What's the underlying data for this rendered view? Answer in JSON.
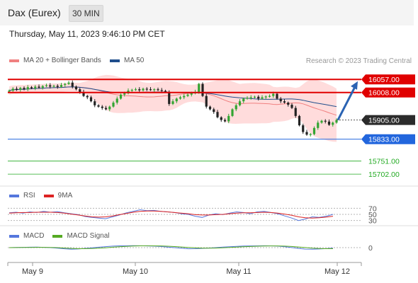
{
  "header": {
    "title": "Dax (Eurex)",
    "interval": "30 MIN"
  },
  "timestamp": "Thursday, May 11, 2023 9:46:10 PM CET",
  "legend": {
    "ma20": "MA 20 + Bollinger Bands",
    "ma50": "MA 50",
    "rsi": "RSI",
    "rsi_ma": "9MA",
    "macd": "MACD",
    "macd_signal": "MACD Signal"
  },
  "credit": "Research © 2023 Trading Central",
  "colors": {
    "resistance": "#e00000",
    "support": "#2266dd",
    "target": "#22aa22",
    "arrow": "#2a63b3",
    "candle_up": "#33a532",
    "candle_down": "#222222",
    "bollinger_fill": "#ffd6d6",
    "ma20": "#f08080",
    "ma50": "#1f4e8c",
    "rsi": "#5577dd",
    "rsi_ma": "#dd2222",
    "macd": "#5577dd",
    "macd_signal": "#55aa22"
  },
  "chart_data": {
    "type": "candlestick",
    "x_ticks": [
      "May 9",
      "May 10",
      "May 11",
      "May 12"
    ],
    "ylim": [
      15660,
      16100
    ],
    "levels": [
      {
        "value": 16057.0,
        "label": "16057.00",
        "kind": "resistance"
      },
      {
        "value": 16008.0,
        "label": "16008.00",
        "kind": "resistance"
      },
      {
        "value": 15905.0,
        "label": "15905.00",
        "kind": "last"
      },
      {
        "value": 15833.0,
        "label": "15833.00",
        "kind": "support"
      },
      {
        "value": 15751.0,
        "label": "15751.00",
        "kind": "target"
      },
      {
        "value": 15702.0,
        "label": "15702.00",
        "kind": "target"
      }
    ],
    "arrow": {
      "from": 15905,
      "to": 16050
    },
    "candle_closes": [
      16015,
      16022,
      16018,
      16025,
      16020,
      16028,
      16024,
      16030,
      16026,
      16032,
      16035,
      16030,
      16033,
      16029,
      16036,
      16040,
      16045,
      16030,
      16020,
      16010,
      15995,
      15990,
      15975,
      15960,
      15955,
      15950,
      15945,
      15955,
      15970,
      15985,
      16000,
      16005,
      16015,
      16018,
      16020,
      16016,
      16022,
      16020,
      16018,
      16020,
      16017,
      16014,
      16010,
      15965,
      15975,
      15985,
      15990,
      15995,
      16000,
      16005,
      16010,
      16040,
      15995,
      15955,
      15945,
      15935,
      15915,
      15905,
      15900,
      15920,
      15945,
      15960,
      15975,
      15985,
      15988,
      15990,
      15992,
      15985,
      15990,
      15993,
      15995,
      16003,
      15985,
      15975,
      15970,
      15962,
      15950,
      15920,
      15885,
      15860,
      15850,
      15852,
      15875,
      15895,
      15902,
      15899,
      15887,
      15895,
      15905
    ],
    "rsi": {
      "levels": [
        70,
        50,
        30
      ],
      "values": [
        55,
        57,
        54,
        58,
        56,
        60,
        57,
        59,
        55,
        52,
        49,
        43,
        40,
        38,
        36,
        42,
        48,
        55,
        60,
        65,
        62,
        63,
        60,
        58,
        56,
        52,
        50,
        44,
        40,
        48,
        52,
        49,
        54,
        58,
        56,
        52,
        58,
        60,
        56,
        52,
        45,
        38,
        30,
        35,
        42,
        40,
        44,
        50
      ]
    },
    "rsi_ma": [
      54,
      55,
      56,
      56,
      57,
      57,
      57,
      56,
      54,
      51,
      48,
      45,
      42,
      41,
      42,
      45,
      49,
      53,
      57,
      60,
      61,
      61,
      60,
      58,
      56,
      54,
      52,
      49,
      48,
      48,
      49,
      50,
      52,
      54,
      55,
      55,
      56,
      57,
      56,
      54,
      51,
      47,
      42,
      39,
      38,
      39,
      41,
      44
    ],
    "macd": {
      "zero_label": "0",
      "values": [
        0,
        5,
        8,
        10,
        12,
        8,
        0,
        -15,
        -30,
        -40,
        -35,
        -20,
        -5,
        10,
        25,
        38,
        45,
        48,
        50,
        48,
        44,
        38,
        30,
        15,
        0,
        -15,
        -30,
        -28,
        -20,
        -10,
        0,
        12,
        22,
        32,
        40,
        44,
        46,
        48,
        45,
        38,
        22,
        2,
        -20,
        -38,
        -42,
        -35,
        -25,
        -12
      ]
    },
    "macd_signal": [
      0,
      2,
      4,
      6,
      8,
      8,
      6,
      0,
      -10,
      -20,
      -27,
      -27,
      -22,
      -14,
      -3,
      10,
      22,
      32,
      40,
      45,
      47,
      46,
      43,
      37,
      28,
      16,
      4,
      -6,
      -12,
      -14,
      -11,
      -5,
      3,
      12,
      22,
      30,
      36,
      41,
      44,
      44,
      39,
      30,
      17,
      2,
      -12,
      -22,
      -27,
      -28
    ]
  }
}
